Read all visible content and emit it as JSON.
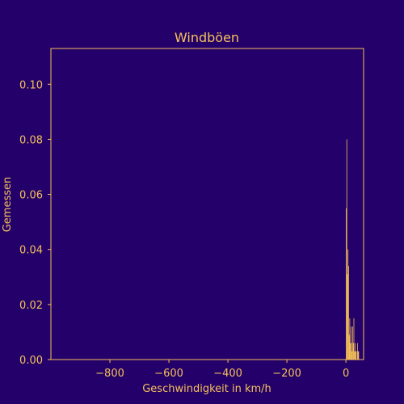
{
  "chart_data": {
    "type": "bar",
    "title": "Windböen",
    "xlabel": "Geschwindigkeit in km/h",
    "ylabel": "Gemessen",
    "xlim": [
      -1000,
      60
    ],
    "ylim": [
      0,
      0.113
    ],
    "xticks": [
      -800,
      -600,
      -400,
      -200,
      0
    ],
    "xtick_labels": [
      "−800",
      "−600",
      "−400",
      "−200",
      "0"
    ],
    "yticks": [
      0.0,
      0.02,
      0.04,
      0.06,
      0.08,
      0.1
    ],
    "ytick_labels": [
      "0.00",
      "0.02",
      "0.04",
      "0.06",
      "0.08",
      "0.10"
    ],
    "grid": false,
    "colors": {
      "background": "#24006a",
      "foreground": "#f5c15a",
      "bars": "#f5c15a"
    },
    "bins": [
      {
        "x0": 0,
        "x1": 2,
        "value": 0.055
      },
      {
        "x0": 2,
        "x1": 4,
        "value": 0.08
      },
      {
        "x0": 4,
        "x1": 6,
        "value": 0.031
      },
      {
        "x0": 6,
        "x1": 8,
        "value": 0.04
      },
      {
        "x0": 8,
        "x1": 10,
        "value": 0.034
      },
      {
        "x0": 10,
        "x1": 12,
        "value": 0.009
      },
      {
        "x0": 12,
        "x1": 14,
        "value": 0.015
      },
      {
        "x0": 14,
        "x1": 16,
        "value": 0.006
      },
      {
        "x0": 16,
        "x1": 18,
        "value": 0.012
      },
      {
        "x0": 18,
        "x1": 20,
        "value": 0.006
      },
      {
        "x0": 20,
        "x1": 22,
        "value": 0.003
      },
      {
        "x0": 22,
        "x1": 24,
        "value": 0.012
      },
      {
        "x0": 24,
        "x1": 26,
        "value": 0.006
      },
      {
        "x0": 26,
        "x1": 28,
        "value": 0.015
      },
      {
        "x0": 28,
        "x1": 30,
        "value": 0.003
      },
      {
        "x0": 30,
        "x1": 32,
        "value": 0.006
      },
      {
        "x0": 32,
        "x1": 34,
        "value": 0.003
      },
      {
        "x0": 34,
        "x1": 36,
        "value": 0.003
      },
      {
        "x0": 36,
        "x1": 38,
        "value": 0.0
      },
      {
        "x0": 38,
        "x1": 40,
        "value": 0.006
      },
      {
        "x0": 40,
        "x1": 42,
        "value": 0.003
      },
      {
        "x0": 42,
        "x1": 44,
        "value": 0.003
      }
    ]
  }
}
